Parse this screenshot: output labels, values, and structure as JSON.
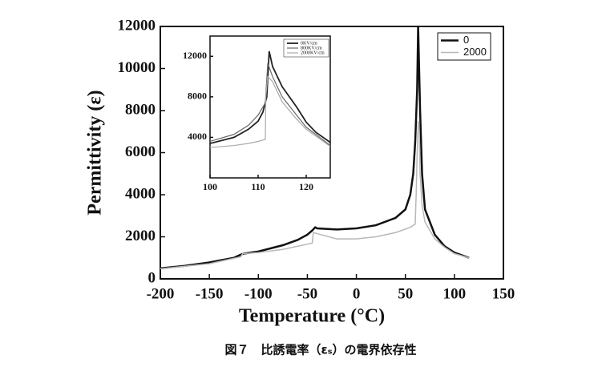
{
  "caption": "図７　比誘電率（εₛ）の電界依存性",
  "chart_data": [
    {
      "type": "line",
      "x_label": "Temperature (°C)",
      "y_label": "Permittivity (ε)",
      "xlim": [
        -200,
        150
      ],
      "xticks": [
        -200,
        -150,
        -100,
        -50,
        0,
        50,
        100,
        150
      ],
      "ylim": [
        0,
        12000
      ],
      "yticks": [
        0,
        2000,
        4000,
        6000,
        8000,
        10000,
        12000
      ],
      "legend": "upper right",
      "series": [
        {
          "name": "0",
          "color": "#111111",
          "width": 2.5,
          "x": [
            -200,
            -175,
            -150,
            -125,
            -118,
            -115,
            -100,
            -75,
            -60,
            -50,
            -45,
            -42,
            -40,
            -20,
            0,
            20,
            40,
            50,
            55,
            58,
            60,
            62,
            63,
            65,
            67,
            70,
            80,
            90,
            100,
            115
          ],
          "values": [
            500,
            620,
            780,
            1000,
            1150,
            1200,
            1300,
            1600,
            1850,
            2100,
            2300,
            2450,
            2400,
            2350,
            2400,
            2550,
            2900,
            3300,
            4000,
            5000,
            6500,
            9000,
            12000,
            8000,
            5000,
            3300,
            2100,
            1550,
            1250,
            1000
          ]
        },
        {
          "name": "2000",
          "color": "#b8b8b8",
          "width": 1.5,
          "x": [
            -200,
            -150,
            -118,
            -116,
            -100,
            -75,
            -50,
            -45,
            -44,
            -40,
            -20,
            0,
            20,
            40,
            55,
            60,
            61,
            62,
            63,
            64,
            65,
            67,
            70,
            80,
            90,
            100,
            115
          ],
          "values": [
            480,
            720,
            1050,
            1200,
            1250,
            1400,
            1650,
            1700,
            2200,
            2150,
            1900,
            1900,
            2000,
            2200,
            2450,
            2600,
            4000,
            6000,
            7500,
            7200,
            5000,
            3500,
            2700,
            1900,
            1500,
            1200,
            1000
          ]
        }
      ]
    },
    {
      "type": "line",
      "xlim": [
        100,
        125
      ],
      "xticks": [
        100,
        110,
        120
      ],
      "ylim": [
        0,
        14000
      ],
      "yticks": [
        4000,
        8000,
        12000
      ],
      "legend": "upper right",
      "series": [
        {
          "name": "0KV/cm",
          "color": "#222222",
          "width": 1.8,
          "x": [
            100,
            105,
            108,
            110,
            111,
            111.8,
            112.3,
            113,
            115,
            118,
            120,
            122,
            125
          ],
          "values": [
            3400,
            4000,
            4800,
            5600,
            6500,
            8000,
            12500,
            11000,
            9000,
            7000,
            5500,
            4500,
            3500
          ]
        },
        {
          "name": "800KV/cm",
          "color": "#666666",
          "width": 1.2,
          "x": [
            100,
            105,
            108,
            110,
            111.5,
            112,
            113,
            115,
            118,
            120,
            125
          ],
          "values": [
            3600,
            4300,
            5200,
            6200,
            7400,
            11300,
            10000,
            8000,
            6200,
            5000,
            3200
          ]
        },
        {
          "name": "2000KV/cm",
          "color": "#aaaaaa",
          "width": 1.2,
          "x": [
            100,
            105,
            108,
            110,
            111.5,
            111.6,
            112,
            113,
            115,
            118,
            120,
            125
          ],
          "values": [
            3000,
            3200,
            3400,
            3600,
            3800,
            8000,
            10000,
            9500,
            7500,
            5800,
            4800,
            3100
          ]
        }
      ]
    }
  ]
}
